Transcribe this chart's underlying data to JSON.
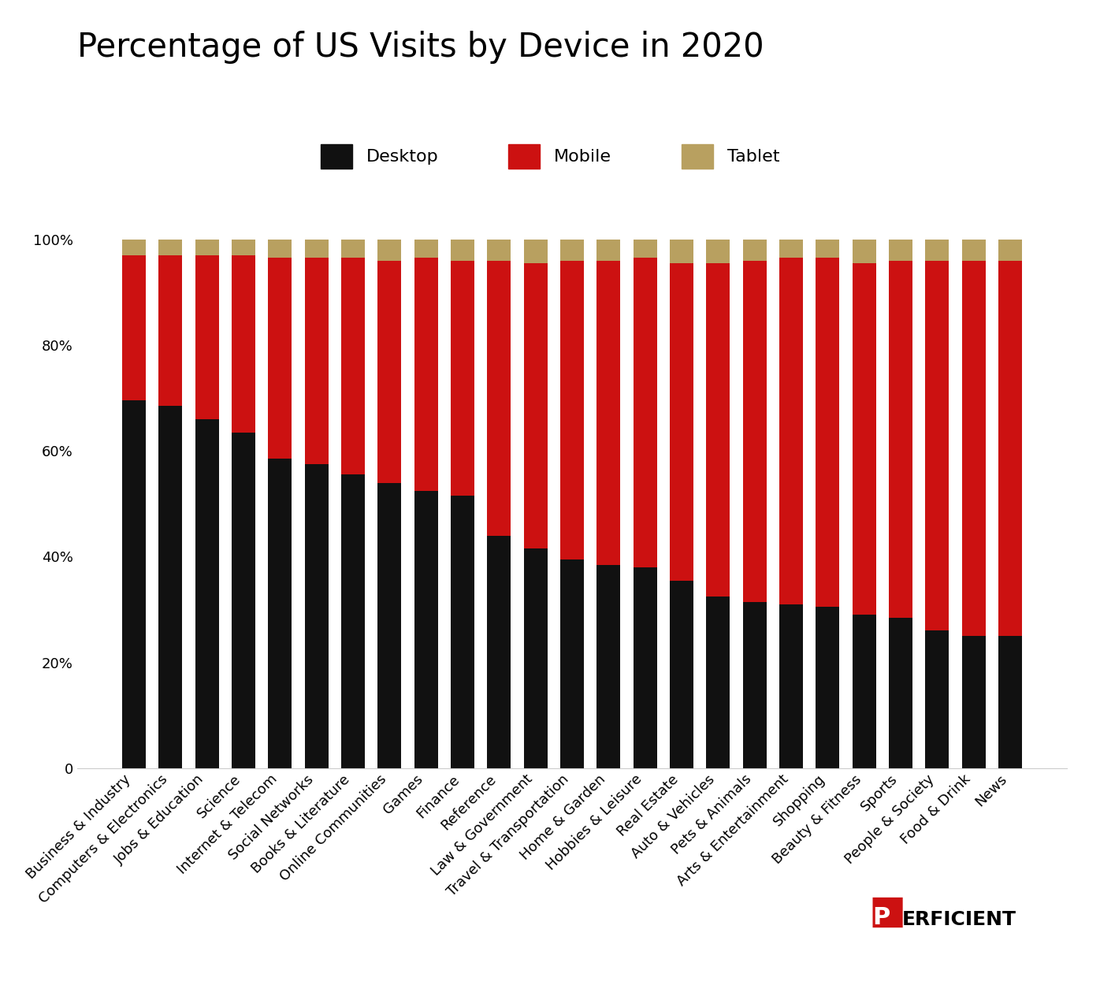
{
  "title": "Percentage of US Visits by Device in 2020",
  "categories": [
    "Business & Industry",
    "Computers & Electronics",
    "Jobs & Education",
    "Science",
    "Internet & Telecom",
    "Social Networks",
    "Books & Literature",
    "Online Communities",
    "Games",
    "Finance",
    "Reference",
    "Law & Government",
    "Travel & Transportation",
    "Home & Garden",
    "Hobbies & Leisure",
    "Real Estate",
    "Auto & Vehicles",
    "Pets & Animals",
    "Arts & Entertainment",
    "Shopping",
    "Beauty & Fitness",
    "Sports",
    "People & Society",
    "Food & Drink",
    "News"
  ],
  "desktop": [
    69.5,
    68.5,
    66.0,
    63.5,
    58.5,
    57.5,
    55.5,
    54.0,
    52.5,
    51.5,
    44.0,
    41.5,
    39.5,
    38.5,
    38.0,
    35.5,
    32.5,
    31.5,
    31.0,
    30.5,
    29.0,
    28.5,
    26.0,
    25.0,
    25.0
  ],
  "mobile": [
    27.5,
    28.5,
    31.0,
    33.5,
    38.0,
    39.0,
    41.0,
    42.0,
    44.0,
    44.5,
    52.0,
    54.0,
    56.5,
    57.5,
    58.5,
    60.0,
    63.0,
    64.5,
    65.5,
    66.0,
    66.5,
    67.5,
    70.0,
    71.0,
    71.0
  ],
  "tablet": [
    3.0,
    3.0,
    3.0,
    3.0,
    3.5,
    3.5,
    3.5,
    4.0,
    3.5,
    4.0,
    4.0,
    4.5,
    4.0,
    4.0,
    3.5,
    4.5,
    4.5,
    4.0,
    3.5,
    3.5,
    4.5,
    4.0,
    4.0,
    4.0,
    4.0
  ],
  "desktop_color": "#111111",
  "mobile_color": "#cc1111",
  "tablet_color": "#b8a060",
  "background_color": "#ffffff",
  "title_fontsize": 30,
  "legend_fontsize": 16,
  "tick_fontsize": 13
}
